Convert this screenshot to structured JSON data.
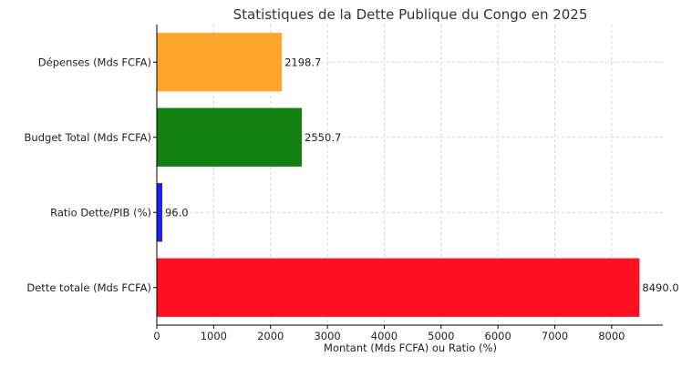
{
  "chart_data": {
    "type": "bar",
    "orientation": "horizontal",
    "title": "Statistiques de la Dette Publique du Congo en 2025",
    "xlabel": "Montant (Mds FCFA) ou Ratio (%)",
    "ylabel": "",
    "categories": [
      "Dépenses (Mds FCFA)",
      "Budget Total (Mds FCFA)",
      "Ratio Dette/PIB (%)",
      "Dette totale (Mds FCFA)"
    ],
    "values": [
      2198.7,
      2550.7,
      96.0,
      8490.0
    ],
    "value_labels": [
      "2198.7",
      "2550.7",
      "96.0",
      "8490.0"
    ],
    "colors": [
      "#ffa52a",
      "#138013",
      "#1b22f0",
      "#ff1020"
    ],
    "xlim": [
      0,
      8900
    ],
    "xticks": [
      0,
      1000,
      2000,
      3000,
      4000,
      5000,
      6000,
      7000,
      8000
    ],
    "xtick_labels": [
      "0",
      "1000",
      "2000",
      "3000",
      "4000",
      "5000",
      "6000",
      "7000",
      "8000"
    ],
    "grid": true
  }
}
